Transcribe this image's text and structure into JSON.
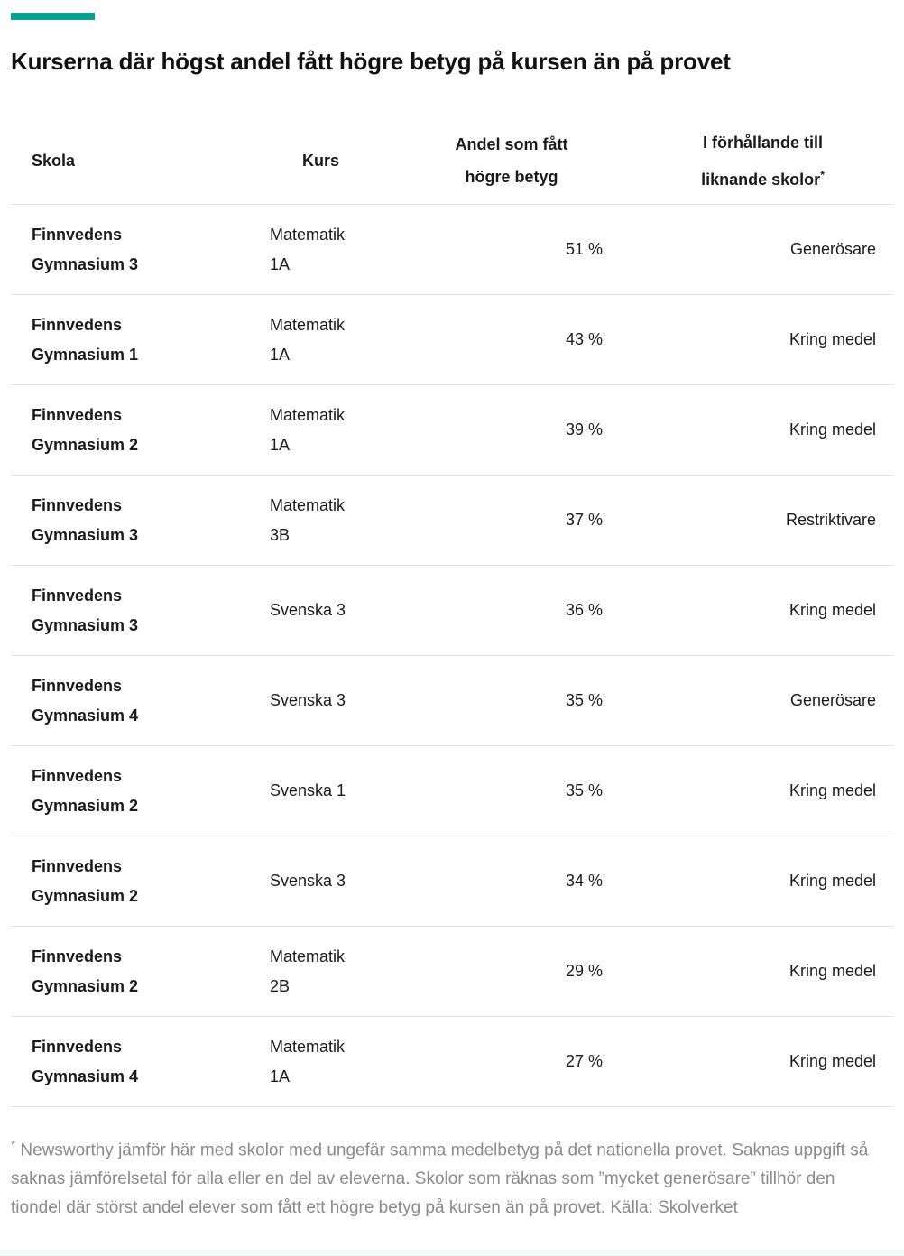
{
  "accent_color": "#0a9e90",
  "title": "Kurserna där högst andel fått högre betyg på kursen än på provet",
  "table": {
    "headers": {
      "skola": "Skola",
      "kurs": "Kurs",
      "andel": "Andel som fått\nhögre betyg",
      "jamforelse": "I förhållande till\nliknande skolor",
      "footnote_marker": "*"
    },
    "rows": [
      {
        "skola": "Finnvedens\nGymnasium 3",
        "kurs": "Matematik\n1A",
        "andel": "51 %",
        "jamforelse": "Generösare"
      },
      {
        "skola": "Finnvedens\nGymnasium 1",
        "kurs": "Matematik\n1A",
        "andel": "43 %",
        "jamforelse": "Kring medel"
      },
      {
        "skola": "Finnvedens\nGymnasium 2",
        "kurs": "Matematik\n1A",
        "andel": "39 %",
        "jamforelse": "Kring medel"
      },
      {
        "skola": "Finnvedens\nGymnasium 3",
        "kurs": "Matematik\n3B",
        "andel": "37 %",
        "jamforelse": "Restriktivare"
      },
      {
        "skola": "Finnvedens\nGymnasium 3",
        "kurs": "Svenska 3",
        "andel": "36 %",
        "jamforelse": "Kring medel"
      },
      {
        "skola": "Finnvedens\nGymnasium 4",
        "kurs": "Svenska 3",
        "andel": "35 %",
        "jamforelse": "Generösare"
      },
      {
        "skola": "Finnvedens\nGymnasium 2",
        "kurs": "Svenska 1",
        "andel": "35 %",
        "jamforelse": "Kring medel"
      },
      {
        "skola": "Finnvedens\nGymnasium 2",
        "kurs": "Svenska 3",
        "andel": "34 %",
        "jamforelse": "Kring medel"
      },
      {
        "skola": "Finnvedens\nGymnasium 2",
        "kurs": "Matematik\n2B",
        "andel": "29 %",
        "jamforelse": "Kring medel"
      },
      {
        "skola": "Finnvedens\nGymnasium 4",
        "kurs": "Matematik\n1A",
        "andel": "27 %",
        "jamforelse": "Kring medel"
      }
    ]
  },
  "footnote": {
    "marker": "*",
    "text": " Newsworthy jämför här med skolor med ungefär samma medelbetyg på det nationella provet. Saknas uppgift så saknas jämförelsetal för alla eller en del av eleverna. Skolor som räknas som ”mycket generösare” tillhör den tiondel där störst andel elever som fått ett högre betyg på kursen än på provet. Källa: Skolverket"
  },
  "chart_data": {
    "type": "table",
    "title": "Kurserna där högst andel fått högre betyg på kursen än på provet",
    "columns": [
      "Skola",
      "Kurs",
      "Andel som fått högre betyg",
      "I förhållande till liknande skolor*"
    ],
    "rows": [
      [
        "Finnvedens Gymnasium 3",
        "Matematik 1A",
        51,
        "Generösare"
      ],
      [
        "Finnvedens Gymnasium 1",
        "Matematik 1A",
        43,
        "Kring medel"
      ],
      [
        "Finnvedens Gymnasium 2",
        "Matematik 1A",
        39,
        "Kring medel"
      ],
      [
        "Finnvedens Gymnasium 3",
        "Matematik 3B",
        37,
        "Restriktivare"
      ],
      [
        "Finnvedens Gymnasium 3",
        "Svenska 3",
        36,
        "Kring medel"
      ],
      [
        "Finnvedens Gymnasium 4",
        "Svenska 3",
        35,
        "Generösare"
      ],
      [
        "Finnvedens Gymnasium 2",
        "Svenska 1",
        35,
        "Kring medel"
      ],
      [
        "Finnvedens Gymnasium 2",
        "Svenska 3",
        34,
        "Kring medel"
      ],
      [
        "Finnvedens Gymnasium 2",
        "Matematik 2B",
        29,
        "Kring medel"
      ],
      [
        "Finnvedens Gymnasium 4",
        "Matematik 1A",
        27,
        "Kring medel"
      ]
    ],
    "value_unit": "%",
    "source": "Källa: Skolverket"
  }
}
